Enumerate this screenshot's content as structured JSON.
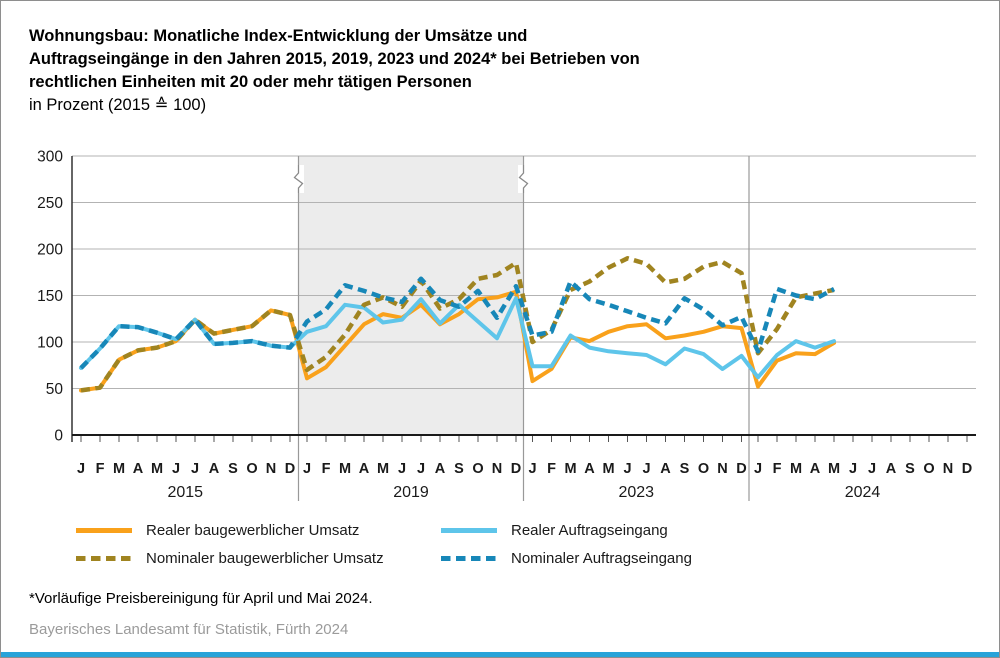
{
  "title": {
    "lines": [
      "Wohnungsbau: Monatliche Index-Entwicklung der Umsätze und",
      "Auftragseingänge in den Jahren 2015, 2019, 2023 und 2024* bei Betrieben von",
      "rechtlichen Einheiten mit 20 oder mehr tätigen Personen",
      "in Prozent (2015 ≙ 100)"
    ]
  },
  "chart_data": {
    "type": "line",
    "ylim": [
      0,
      300
    ],
    "yticks": [
      0,
      50,
      100,
      150,
      200,
      250,
      300
    ],
    "grid": true,
    "month_letters": [
      "J",
      "F",
      "M",
      "A",
      "M",
      "J",
      "J",
      "A",
      "S",
      "O",
      "N",
      "D"
    ],
    "years": [
      "2015",
      "2019",
      "2023",
      "2024"
    ],
    "highlight_year": "2019",
    "axis_break_marks": "zigzag symbols on both edges of shaded 2019 band near top",
    "series": [
      {
        "name": "Realer baugewerblicher Umsatz",
        "style": "solid",
        "color": "#F9A11B",
        "values": {
          "2015": [
            48,
            51,
            81,
            91,
            94,
            101,
            124,
            109,
            113,
            117,
            134,
            129
          ],
          "2019": [
            61,
            73,
            96,
            119,
            130,
            126,
            140,
            119,
            130,
            146,
            148,
            154
          ],
          "2023": [
            58,
            71,
            105,
            101,
            111,
            117,
            119,
            104,
            107,
            111,
            117,
            115
          ],
          "2024": [
            52,
            80,
            88,
            87,
            99
          ]
        }
      },
      {
        "name": "Realer Auftragseingang",
        "style": "solid",
        "color": "#5EC5EA",
        "values": {
          "2015": [
            72,
            93,
            117,
            116,
            110,
            103,
            124,
            98,
            99,
            101,
            96,
            94
          ],
          "2019": [
            111,
            117,
            140,
            137,
            121,
            124,
            146,
            120,
            140,
            122,
            104,
            147
          ],
          "2023": [
            74,
            74,
            107,
            94,
            90,
            88,
            86,
            76,
            93,
            87,
            71,
            85
          ],
          "2024": [
            62,
            86,
            101,
            94,
            101
          ]
        }
      },
      {
        "name": "Nominaler baugewerblicher Umsatz",
        "style": "dashed",
        "color": "#A08420",
        "values": {
          "2015": [
            48,
            51,
            81,
            91,
            94,
            101,
            124,
            109,
            113,
            117,
            134,
            129
          ],
          "2019": [
            70,
            84,
            108,
            140,
            148,
            138,
            166,
            136,
            146,
            168,
            172,
            185
          ],
          "2023": [
            100,
            113,
            156,
            165,
            180,
            190,
            184,
            164,
            168,
            181,
            186,
            174
          ],
          "2024": [
            88,
            114,
            148,
            152,
            156
          ]
        }
      },
      {
        "name": "Nominaler Auftragseingang",
        "style": "dashed",
        "color": "#1787B8",
        "values": {
          "2015": [
            72,
            93,
            117,
            116,
            110,
            103,
            124,
            98,
            99,
            101,
            96,
            94
          ],
          "2019": [
            122,
            135,
            161,
            155,
            148,
            143,
            168,
            145,
            138,
            155,
            126,
            160
          ],
          "2023": [
            107,
            111,
            165,
            146,
            140,
            133,
            126,
            120,
            147,
            135,
            118,
            127
          ],
          "2024": [
            90,
            157,
            150,
            146,
            157
          ]
        }
      }
    ]
  },
  "legend": {
    "items": [
      {
        "label": "Realer baugewerblicher Umsatz",
        "style": "solid",
        "color": "#F9A11B"
      },
      {
        "label": "Realer Auftragseingang",
        "style": "solid",
        "color": "#5EC5EA"
      },
      {
        "label": "Nominaler baugewerblicher Umsatz",
        "style": "dashed",
        "color": "#A08420"
      },
      {
        "label": "Nominaler Auftragseingang",
        "style": "dashed",
        "color": "#1787B8"
      }
    ]
  },
  "footnote": "*Vorläufige Preisbereinigung für April und Mai 2024.",
  "source": "Bayerisches Landesamt für Statistik, Fürth 2024",
  "colors": {
    "band": "#ECECEC",
    "gridline": "#b3b3b3",
    "axis": "#1a1a1a",
    "separator": "#999999",
    "accent_bar": "#27A3D9",
    "source_text": "#9b9b9b"
  }
}
